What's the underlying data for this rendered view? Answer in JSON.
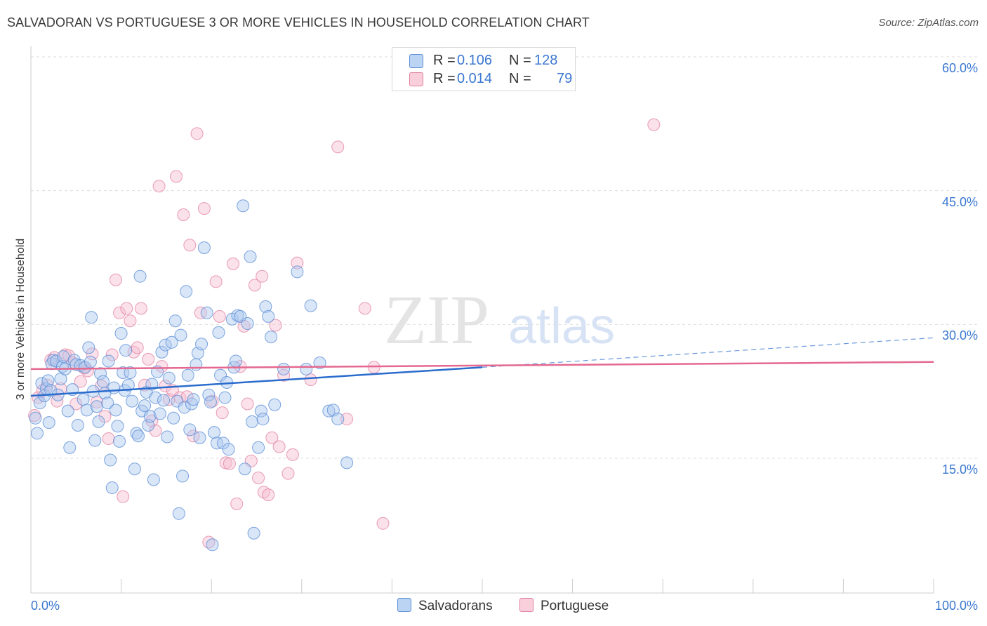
{
  "title": "SALVADORAN VS PORTUGUESE 3 OR MORE VEHICLES IN HOUSEHOLD CORRELATION CHART",
  "source": "Source: ZipAtlas.com",
  "watermark": {
    "zip": "ZIP",
    "atlas": "atlas"
  },
  "legend": {
    "rows": [
      {
        "r_label": "R =",
        "r_value": "0.106",
        "n_label": "N =",
        "n_value": "128"
      },
      {
        "r_label": "R =",
        "r_value": "0.014",
        "n_label": "N =",
        "n_value": "79"
      }
    ]
  },
  "colors": {
    "salvadorans_fill": "#aac8f0",
    "salvadorans_stroke": "#5c8fd6",
    "salvadorans_line": "#2a6ccd",
    "portuguese_fill": "#f6bdd0",
    "portuguese_stroke": "#e07ea0",
    "portuguese_line": "#e4688f",
    "tick_label": "#3b78d0",
    "grid": "#dddddd"
  },
  "chart_data": {
    "type": "scatter",
    "title": "SALVADORAN VS PORTUGUESE 3 OR MORE VEHICLES IN HOUSEHOLD CORRELATION CHART",
    "xlabel": "",
    "ylabel": "3 or more Vehicles in Household",
    "xlim": [
      0,
      100
    ],
    "ylim": [
      0,
      65
    ],
    "x_tick_labels": [
      "0.0%",
      "100.0%"
    ],
    "y_ticks": [
      15,
      30,
      45,
      60
    ],
    "y_tick_labels": [
      "15.0%",
      "30.0%",
      "45.0%",
      "60.0%"
    ],
    "grid": true,
    "legend_position": "top-center",
    "series": [
      {
        "name": "Salvadorans",
        "r": 0.106,
        "n": 128,
        "trend": {
          "x0": 0,
          "y0": 22.0,
          "x1": 50,
          "y1": 25.2,
          "dashed_to_x": 100,
          "dashed_to_y": 28.5
        },
        "points": [
          [
            0.5,
            19.5
          ],
          [
            0.7,
            17.8
          ],
          [
            1.0,
            21.2
          ],
          [
            1.2,
            23.4
          ],
          [
            1.5,
            22.0
          ],
          [
            1.7,
            22.8
          ],
          [
            1.9,
            23.7
          ],
          [
            2.0,
            19.0
          ],
          [
            2.2,
            22.6
          ],
          [
            2.3,
            25.6
          ],
          [
            2.5,
            26.0
          ],
          [
            2.8,
            25.9
          ],
          [
            3.0,
            22.1
          ],
          [
            3.3,
            23.9
          ],
          [
            3.5,
            25.3
          ],
          [
            3.6,
            26.4
          ],
          [
            3.8,
            25.0
          ],
          [
            4.1,
            20.3
          ],
          [
            4.3,
            16.2
          ],
          [
            4.6,
            22.7
          ],
          [
            4.8,
            26.0
          ],
          [
            5.0,
            25.5
          ],
          [
            5.2,
            18.7
          ],
          [
            5.5,
            25.4
          ],
          [
            5.8,
            21.6
          ],
          [
            6.0,
            25.2
          ],
          [
            6.2,
            20.4
          ],
          [
            6.4,
            27.4
          ],
          [
            6.6,
            25.8
          ],
          [
            6.7,
            30.8
          ],
          [
            6.9,
            22.5
          ],
          [
            7.1,
            17.0
          ],
          [
            7.3,
            20.8
          ],
          [
            7.5,
            19.1
          ],
          [
            7.7,
            24.5
          ],
          [
            8.0,
            23.6
          ],
          [
            8.2,
            22.3
          ],
          [
            8.5,
            21.2
          ],
          [
            8.6,
            25.9
          ],
          [
            8.8,
            14.8
          ],
          [
            9.0,
            11.7
          ],
          [
            9.2,
            22.9
          ],
          [
            9.4,
            20.4
          ],
          [
            9.6,
            18.6
          ],
          [
            9.8,
            16.9
          ],
          [
            10.0,
            29.0
          ],
          [
            10.2,
            24.6
          ],
          [
            10.4,
            22.6
          ],
          [
            10.5,
            27.1
          ],
          [
            10.8,
            23.2
          ],
          [
            11.0,
            24.6
          ],
          [
            11.2,
            21.4
          ],
          [
            11.5,
            13.8
          ],
          [
            11.7,
            17.8
          ],
          [
            11.9,
            17.5
          ],
          [
            12.1,
            35.4
          ],
          [
            12.3,
            20.3
          ],
          [
            12.6,
            20.9
          ],
          [
            12.8,
            22.4
          ],
          [
            13.0,
            18.7
          ],
          [
            13.2,
            19.7
          ],
          [
            13.4,
            23.3
          ],
          [
            13.6,
            12.6
          ],
          [
            13.8,
            21.8
          ],
          [
            14.0,
            24.7
          ],
          [
            14.3,
            20.0
          ],
          [
            14.5,
            26.9
          ],
          [
            14.7,
            21.5
          ],
          [
            14.9,
            27.7
          ],
          [
            15.1,
            17.4
          ],
          [
            15.3,
            24.0
          ],
          [
            15.6,
            28.0
          ],
          [
            15.8,
            19.5
          ],
          [
            16.0,
            30.4
          ],
          [
            16.2,
            21.4
          ],
          [
            16.4,
            8.8
          ],
          [
            16.6,
            28.8
          ],
          [
            16.8,
            13.0
          ],
          [
            17.0,
            20.7
          ],
          [
            17.2,
            33.7
          ],
          [
            17.4,
            24.3
          ],
          [
            17.6,
            18.2
          ],
          [
            17.8,
            21.1
          ],
          [
            18.0,
            21.6
          ],
          [
            18.3,
            25.5
          ],
          [
            18.5,
            26.8
          ],
          [
            18.7,
            17.3
          ],
          [
            18.9,
            27.8
          ],
          [
            19.2,
            38.6
          ],
          [
            19.5,
            31.3
          ],
          [
            19.7,
            22.1
          ],
          [
            19.9,
            21.3
          ],
          [
            20.1,
            5.3
          ],
          [
            20.3,
            17.9
          ],
          [
            20.6,
            16.7
          ],
          [
            20.8,
            29.1
          ],
          [
            21.0,
            24.3
          ],
          [
            21.3,
            16.7
          ],
          [
            21.5,
            21.8
          ],
          [
            21.7,
            23.5
          ],
          [
            21.9,
            16.0
          ],
          [
            22.3,
            30.6
          ],
          [
            22.5,
            25.2
          ],
          [
            22.7,
            25.9
          ],
          [
            22.9,
            31.0
          ],
          [
            23.2,
            30.9
          ],
          [
            23.5,
            43.3
          ],
          [
            23.7,
            13.8
          ],
          [
            24.0,
            30.1
          ],
          [
            24.3,
            37.6
          ],
          [
            24.5,
            19.1
          ],
          [
            24.7,
            6.6
          ],
          [
            25.2,
            16.2
          ],
          [
            25.5,
            20.3
          ],
          [
            25.7,
            19.4
          ],
          [
            26.0,
            32.0
          ],
          [
            26.3,
            30.9
          ],
          [
            26.6,
            28.6
          ],
          [
            27.0,
            21.0
          ],
          [
            28.0,
            25.0
          ],
          [
            29.5,
            35.9
          ],
          [
            30.5,
            25.0
          ],
          [
            31.0,
            32.1
          ],
          [
            32.0,
            25.7
          ],
          [
            33.0,
            20.3
          ],
          [
            33.5,
            20.4
          ],
          [
            34.0,
            19.4
          ],
          [
            35.0,
            14.5
          ]
        ]
      },
      {
        "name": "Portuguese",
        "r": 0.014,
        "n": 79,
        "trend": {
          "x0": 0,
          "y0": 25.0,
          "x1": 100,
          "y1": 25.8
        },
        "points": [
          [
            0.4,
            19.8
          ],
          [
            0.8,
            21.8
          ],
          [
            1.3,
            22.6
          ],
          [
            1.8,
            23.2
          ],
          [
            2.2,
            26.0
          ],
          [
            2.6,
            26.3
          ],
          [
            2.9,
            21.4
          ],
          [
            3.3,
            22.8
          ],
          [
            3.8,
            26.6
          ],
          [
            4.2,
            26.5
          ],
          [
            4.6,
            25.7
          ],
          [
            5.0,
            21.1
          ],
          [
            5.5,
            23.6
          ],
          [
            5.9,
            25.1
          ],
          [
            6.3,
            24.8
          ],
          [
            6.8,
            26.7
          ],
          [
            7.3,
            21.3
          ],
          [
            7.8,
            23.1
          ],
          [
            8.2,
            19.7
          ],
          [
            8.6,
            17.2
          ],
          [
            9.0,
            26.6
          ],
          [
            9.4,
            35.0
          ],
          [
            9.8,
            31.3
          ],
          [
            10.2,
            10.7
          ],
          [
            10.6,
            31.8
          ],
          [
            11.0,
            30.4
          ],
          [
            11.4,
            26.9
          ],
          [
            11.8,
            27.4
          ],
          [
            12.2,
            31.8
          ],
          [
            12.6,
            23.2
          ],
          [
            13.0,
            26.1
          ],
          [
            13.4,
            19.2
          ],
          [
            13.8,
            18.1
          ],
          [
            14.2,
            45.5
          ],
          [
            14.5,
            25.3
          ],
          [
            14.9,
            23.1
          ],
          [
            15.3,
            21.6
          ],
          [
            15.7,
            22.6
          ],
          [
            16.1,
            46.6
          ],
          [
            16.5,
            21.8
          ],
          [
            16.9,
            42.3
          ],
          [
            17.3,
            21.9
          ],
          [
            17.6,
            38.9
          ],
          [
            18.0,
            17.5
          ],
          [
            18.4,
            51.4
          ],
          [
            18.8,
            31.3
          ],
          [
            19.2,
            43.0
          ],
          [
            19.7,
            5.6
          ],
          [
            20.1,
            21.4
          ],
          [
            20.5,
            34.8
          ],
          [
            20.9,
            30.9
          ],
          [
            21.2,
            20.1
          ],
          [
            21.6,
            14.5
          ],
          [
            22.0,
            14.4
          ],
          [
            22.4,
            36.8
          ],
          [
            22.8,
            9.9
          ],
          [
            23.2,
            25.3
          ],
          [
            23.6,
            29.8
          ],
          [
            24.0,
            21.1
          ],
          [
            24.4,
            14.7
          ],
          [
            24.8,
            34.4
          ],
          [
            25.2,
            12.8
          ],
          [
            25.6,
            35.4
          ],
          [
            25.8,
            11.2
          ],
          [
            26.3,
            10.9
          ],
          [
            26.7,
            17.3
          ],
          [
            27.1,
            29.9
          ],
          [
            27.5,
            16.3
          ],
          [
            28.0,
            24.3
          ],
          [
            28.5,
            13.3
          ],
          [
            29.0,
            15.4
          ],
          [
            29.5,
            36.9
          ],
          [
            31.0,
            23.8
          ],
          [
            34.0,
            49.9
          ],
          [
            35.0,
            19.4
          ],
          [
            37.0,
            31.8
          ],
          [
            38.0,
            25.2
          ],
          [
            39.0,
            7.7
          ],
          [
            69.0,
            52.4
          ]
        ]
      }
    ]
  },
  "bottom_legend": [
    "Salvadorans",
    "Portuguese"
  ]
}
